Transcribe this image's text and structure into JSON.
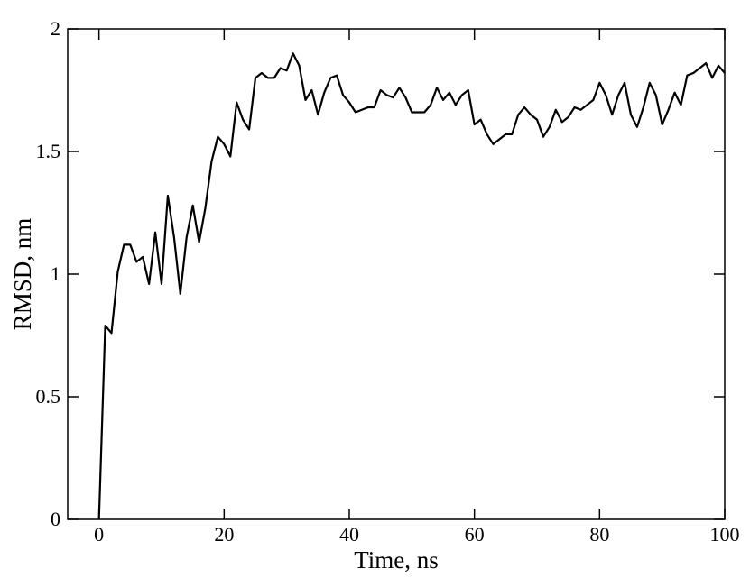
{
  "chart_data": {
    "type": "line",
    "x_label": "Time, ns",
    "y_label": "RMSD, nm",
    "x": [
      0,
      1,
      2,
      3,
      4,
      5,
      6,
      7,
      8,
      9,
      10,
      11,
      12,
      13,
      14,
      15,
      16,
      17,
      18,
      19,
      20,
      21,
      22,
      23,
      24,
      25,
      26,
      27,
      28,
      29,
      30,
      31,
      32,
      33,
      34,
      35,
      36,
      37,
      38,
      39,
      40,
      41,
      42,
      43,
      44,
      45,
      46,
      47,
      48,
      49,
      50,
      51,
      52,
      53,
      54,
      55,
      56,
      57,
      58,
      59,
      60,
      61,
      62,
      63,
      64,
      65,
      66,
      67,
      68,
      69,
      70,
      71,
      72,
      73,
      74,
      75,
      76,
      77,
      78,
      79,
      80,
      81,
      82,
      83,
      84,
      85,
      86,
      87,
      88,
      89,
      90,
      91,
      92,
      93,
      94,
      95,
      96,
      97,
      98,
      99,
      100
    ],
    "series": [
      {
        "color": "#000000",
        "values": [
          0,
          0.79,
          0.76,
          1.01,
          1.12,
          1.12,
          1.05,
          1.07,
          0.96,
          1.17,
          0.96,
          1.32,
          1.15,
          0.92,
          1.15,
          1.28,
          1.13,
          1.27,
          1.46,
          1.56,
          1.53,
          1.48,
          1.7,
          1.63,
          1.59,
          1.8,
          1.82,
          1.8,
          1.8,
          1.84,
          1.83,
          1.9,
          1.85,
          1.71,
          1.75,
          1.65,
          1.74,
          1.8,
          1.81,
          1.73,
          1.7,
          1.66,
          1.67,
          1.68,
          1.68,
          1.75,
          1.73,
          1.72,
          1.76,
          1.72,
          1.66,
          1.66,
          1.66,
          1.69,
          1.76,
          1.71,
          1.74,
          1.69,
          1.73,
          1.75,
          1.61,
          1.63,
          1.57,
          1.53,
          1.55,
          1.57,
          1.57,
          1.65,
          1.68,
          1.65,
          1.63,
          1.56,
          1.6,
          1.67,
          1.62,
          1.64,
          1.68,
          1.67,
          1.69,
          1.71,
          1.78,
          1.73,
          1.65,
          1.73,
          1.78,
          1.65,
          1.6,
          1.68,
          1.78,
          1.73,
          1.61,
          1.67,
          1.74,
          1.69,
          1.81,
          1.82,
          1.84,
          1.86,
          1.8,
          1.85,
          1.82
        ]
      }
    ],
    "xlim": [
      -5,
      100
    ],
    "ylim": [
      0,
      2
    ],
    "xticks": [
      0,
      20,
      40,
      60,
      80,
      100
    ],
    "yticks": [
      0,
      0.5,
      1,
      1.5,
      2
    ],
    "grid": false
  }
}
